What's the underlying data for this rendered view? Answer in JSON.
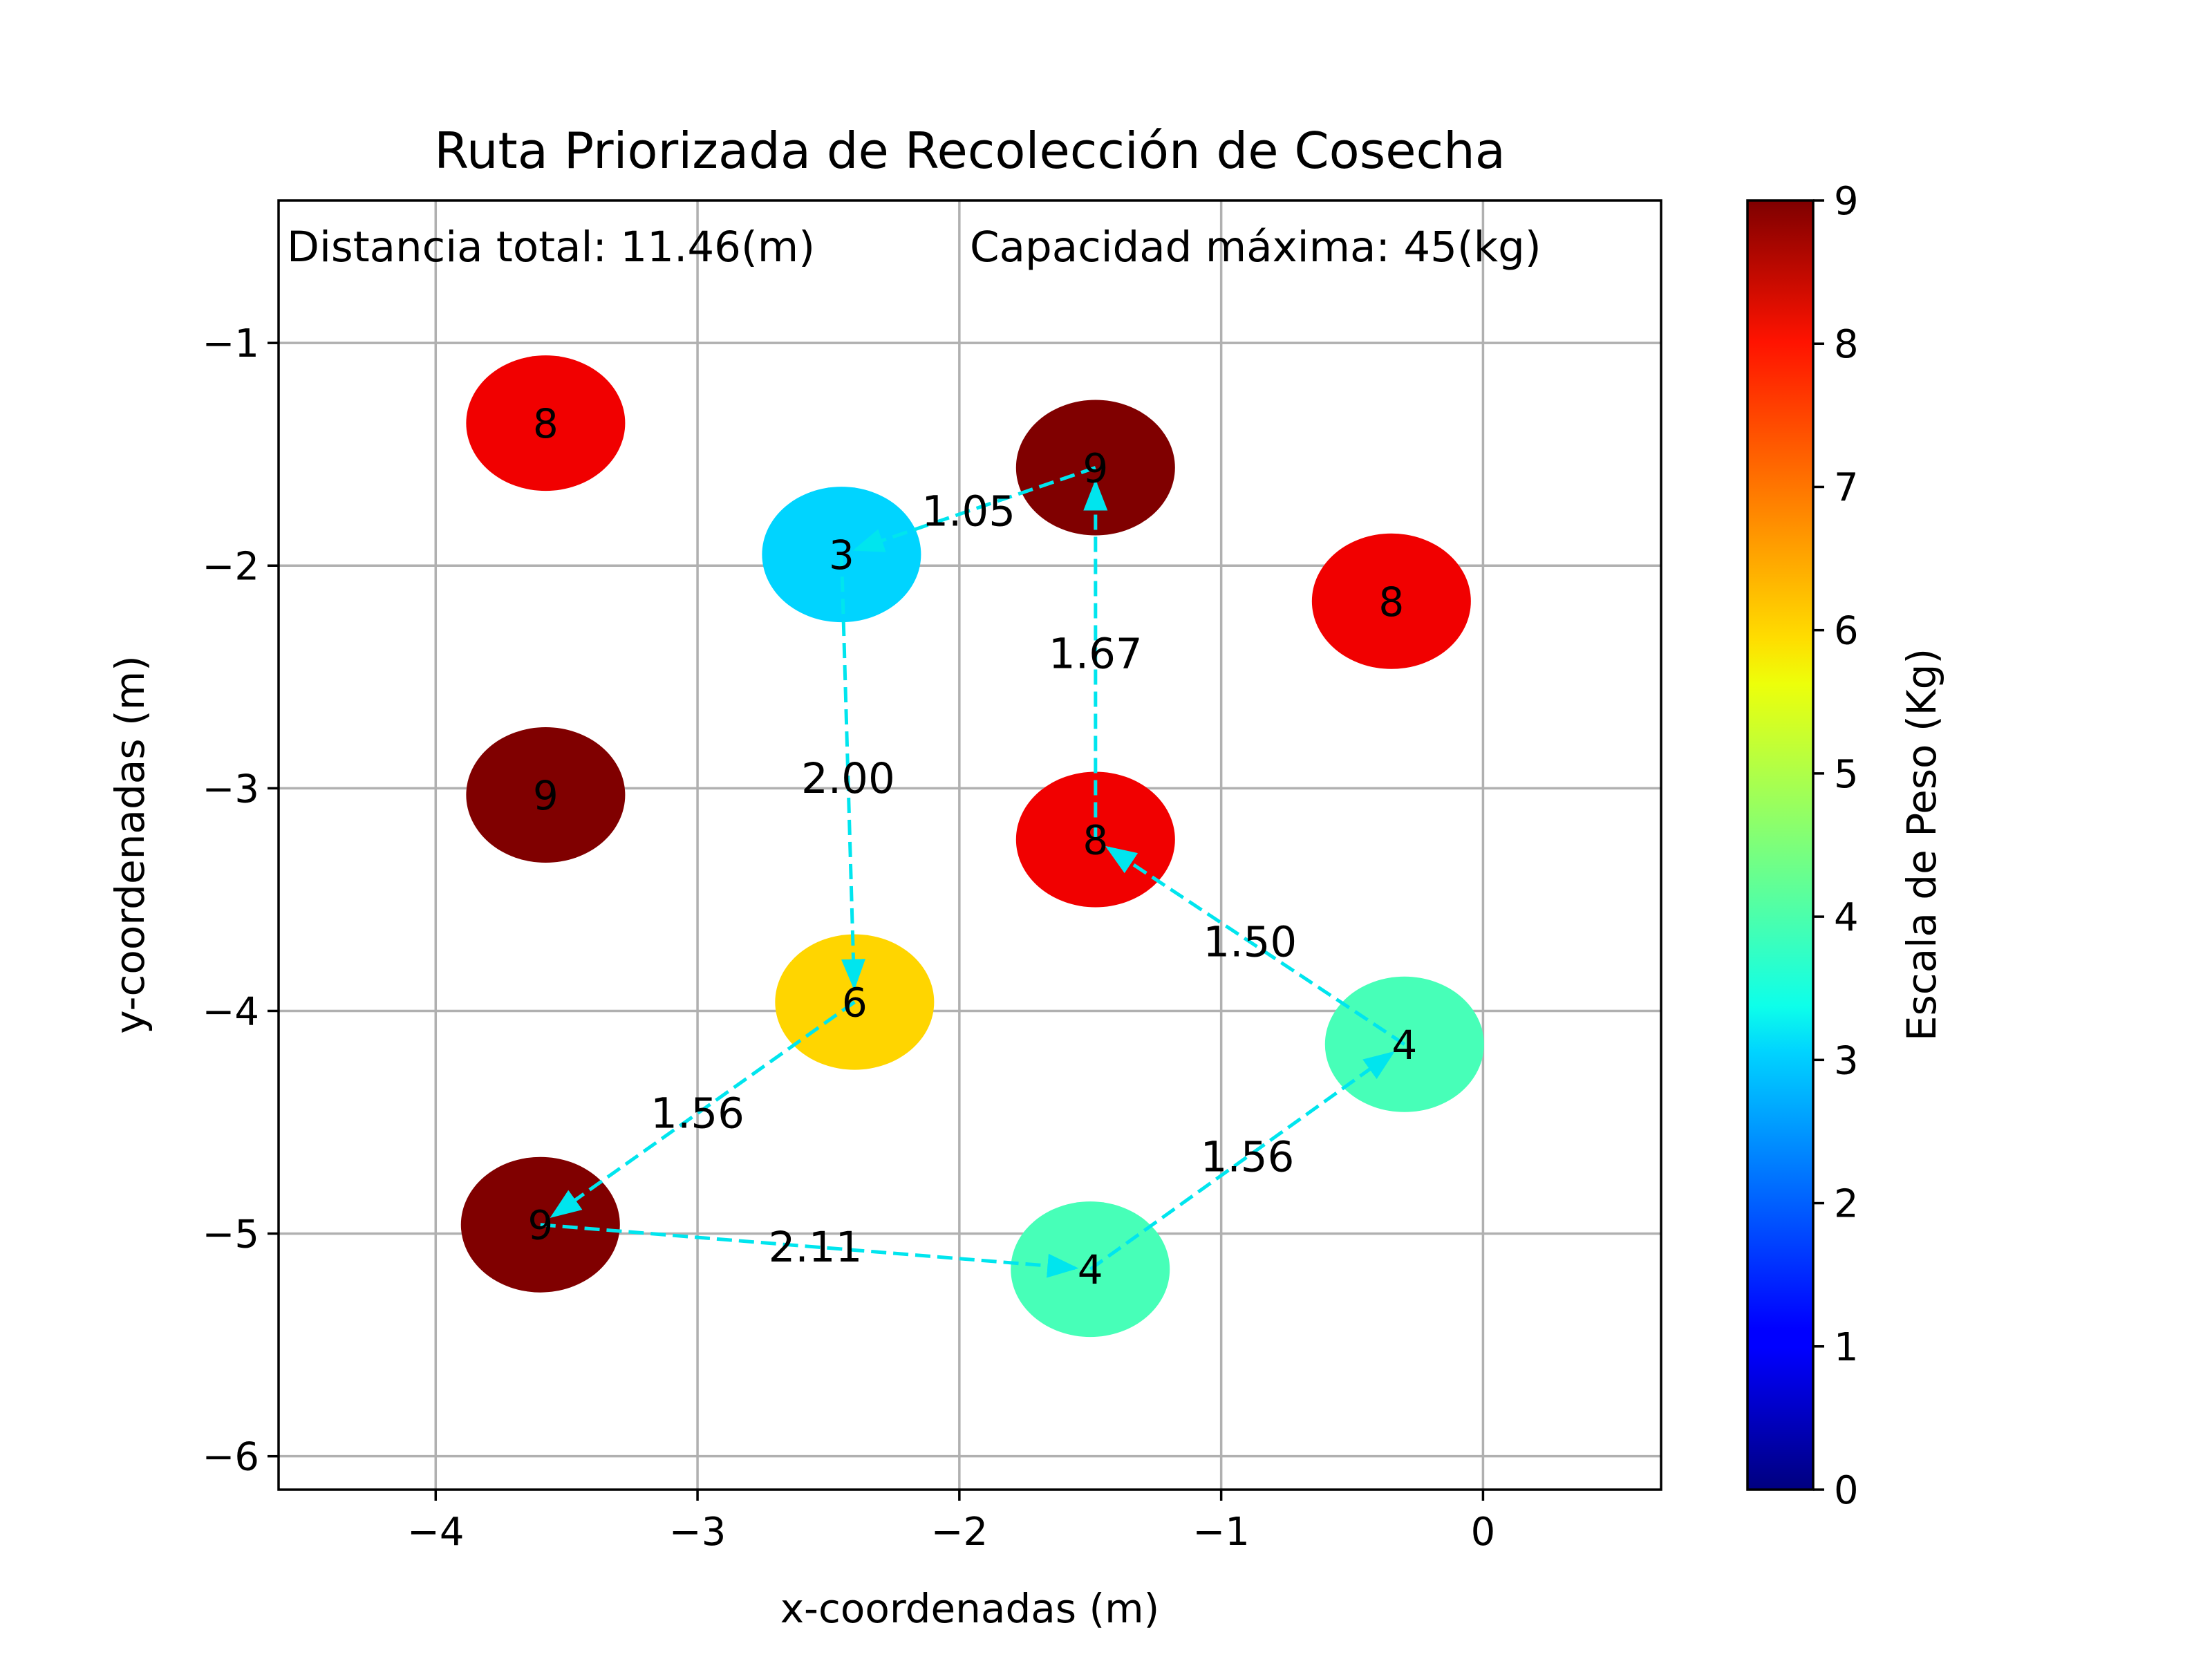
{
  "chart_data": {
    "type": "scatter",
    "title": "Ruta Priorizada de Recolección de Cosecha",
    "xlabel": "x-coordenadas (m)",
    "ylabel": "y-coordenadas (m)",
    "xlim": [
      -4.6,
      0.68
    ],
    "ylim": [
      -6.15,
      -0.36
    ],
    "xticks": [
      -4,
      -3,
      -2,
      -1,
      0
    ],
    "yticks": [
      -1,
      -2,
      -3,
      -4,
      -5,
      -6
    ],
    "xtick_labels": [
      "−4",
      "−3",
      "−2",
      "−1",
      "0"
    ],
    "ytick_labels": [
      "−1",
      "−2",
      "−3",
      "−4",
      "−5",
      "−6"
    ],
    "grid": true,
    "annotations": {
      "distance": "Distancia total: 11.46(m)",
      "capacity": "Capacidad máxima: 45(kg)"
    },
    "colorbar": {
      "label": "Escala de Peso (Kg)",
      "colormap": "jet",
      "range": [
        0,
        9
      ],
      "ticks": [
        "0",
        "1",
        "2",
        "3",
        "4",
        "5",
        "6",
        "7",
        "8",
        "9"
      ]
    },
    "points": [
      {
        "x": -3.58,
        "y": -1.36,
        "weight": 8,
        "label": "8"
      },
      {
        "x": -1.48,
        "y": -1.56,
        "weight": 9,
        "label": "9"
      },
      {
        "x": -2.45,
        "y": -1.95,
        "weight": 3,
        "label": "3"
      },
      {
        "x": -0.35,
        "y": -2.16,
        "weight": 8,
        "label": "8"
      },
      {
        "x": -3.58,
        "y": -3.03,
        "weight": 9,
        "label": "9"
      },
      {
        "x": -1.48,
        "y": -3.23,
        "weight": 8,
        "label": "8"
      },
      {
        "x": -2.4,
        "y": -3.96,
        "weight": 6,
        "label": "6"
      },
      {
        "x": -0.3,
        "y": -4.15,
        "weight": 4,
        "label": "4"
      },
      {
        "x": -3.6,
        "y": -4.96,
        "weight": 9,
        "label": "9"
      },
      {
        "x": -1.5,
        "y": -5.16,
        "weight": 4,
        "label": "4"
      }
    ],
    "route": [
      {
        "from": 7,
        "to": 5,
        "label": "1.50"
      },
      {
        "from": 5,
        "to": 1,
        "label": "1.67"
      },
      {
        "from": 1,
        "to": 2,
        "label": "1.05"
      },
      {
        "from": 2,
        "to": 6,
        "label": "2.00"
      },
      {
        "from": 6,
        "to": 8,
        "label": "1.56"
      },
      {
        "from": 8,
        "to": 9,
        "label": "2.11"
      },
      {
        "from": 9,
        "to": 7,
        "label": "1.56"
      }
    ]
  }
}
